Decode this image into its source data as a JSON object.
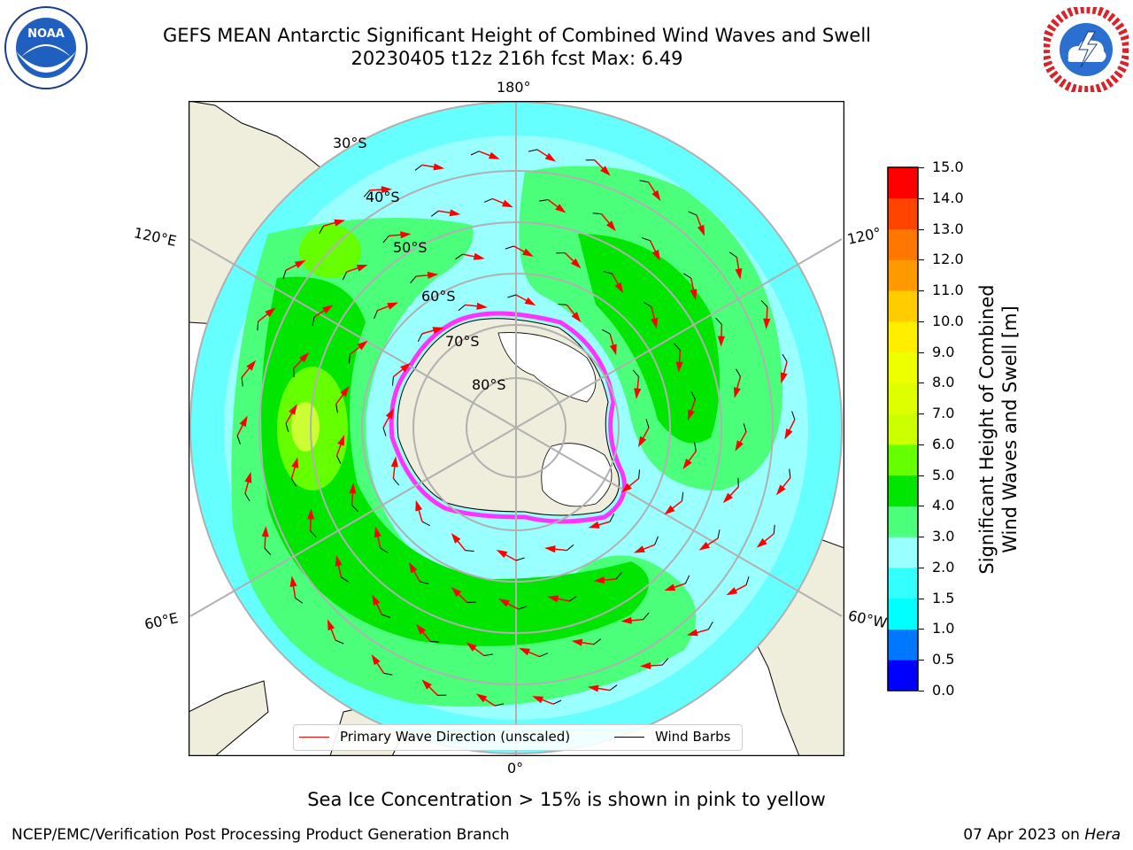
{
  "title": {
    "line1": "GEFS MEAN Antarctic Significant Height of Combined Wind Waves and Swell",
    "line2": "20230405 t12z 216h fcst   Max: 6.49"
  },
  "logos": {
    "left": "NOAA",
    "right": "NATIONAL WEATHER SERVICE"
  },
  "map": {
    "projection": "south-polar-stereographic",
    "lon_labels": [
      "180°",
      "120°E",
      "120°",
      "60°E",
      "60°W",
      "0°"
    ],
    "lat_labels": [
      "30°S",
      "40°S",
      "50°S",
      "60°S",
      "70°S",
      "80°S"
    ],
    "colors": {
      "ocean_low": "#66ffff",
      "ocean_mid": "#99ffff",
      "band_3_4": "#4cff7a",
      "band_4_5": "#00e600",
      "band_5_6": "#66ff00",
      "band_6_7": "#ccff33",
      "land": "#efeddc",
      "ice_edge": "#ff33ff",
      "arrow": "#ff0000"
    }
  },
  "colorbar": {
    "title_line1": "Significant Height of Combined",
    "title_line2": "Wind Waves and Swell [m]",
    "ticks": [
      "0.0",
      "0.5",
      "1.0",
      "1.5",
      "2.0",
      "3.0",
      "4.0",
      "5.0",
      "6.0",
      "7.0",
      "8.0",
      "9.0",
      "10.0",
      "11.0",
      "12.0",
      "13.0",
      "14.0",
      "15.0"
    ],
    "colors": [
      "#0000ff",
      "#0077ff",
      "#00ffff",
      "#33ffff",
      "#99ffff",
      "#4cff7a",
      "#00e600",
      "#66ff00",
      "#ccff00",
      "#ddff00",
      "#eeff00",
      "#ffee00",
      "#ffcc00",
      "#ff9900",
      "#ff7700",
      "#ff4400",
      "#ff0000"
    ]
  },
  "legend": {
    "primary_wave": "Primary Wave Direction (unscaled)",
    "wind_barbs": "Wind Barbs"
  },
  "footer": {
    "ice_note": "Sea Ice Concentration > 15% is shown in pink to yellow",
    "left": "NCEP/EMC/Verification Post Processing Product Generation Branch",
    "right_date": "07 Apr 2023 on ",
    "right_host": "Hera"
  }
}
